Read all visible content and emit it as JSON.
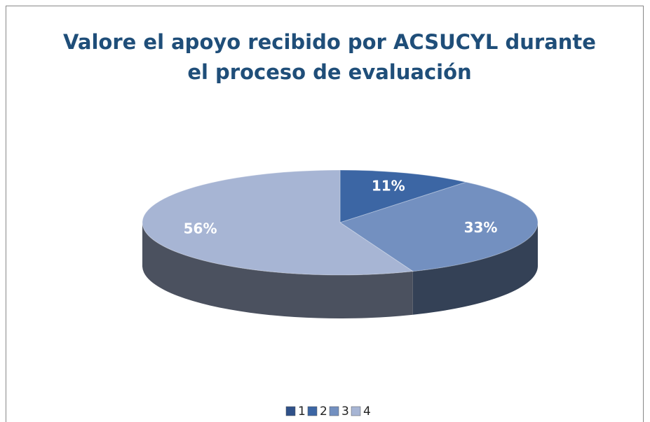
{
  "chart_data": {
    "type": "pie",
    "title": [
      "Valore el apoyo recibido por ACSUCYL durante",
      "el proceso de evaluación"
    ],
    "categories": [
      "1",
      "2",
      "3",
      "4"
    ],
    "values": [
      0,
      11,
      33,
      56
    ],
    "value_labels": [
      null,
      "11%",
      "33%",
      "56%"
    ],
    "colors": [
      "#2f5189",
      "#3c66a4",
      "#7390c0",
      "#a7b5d4"
    ],
    "legend": "bottom"
  }
}
